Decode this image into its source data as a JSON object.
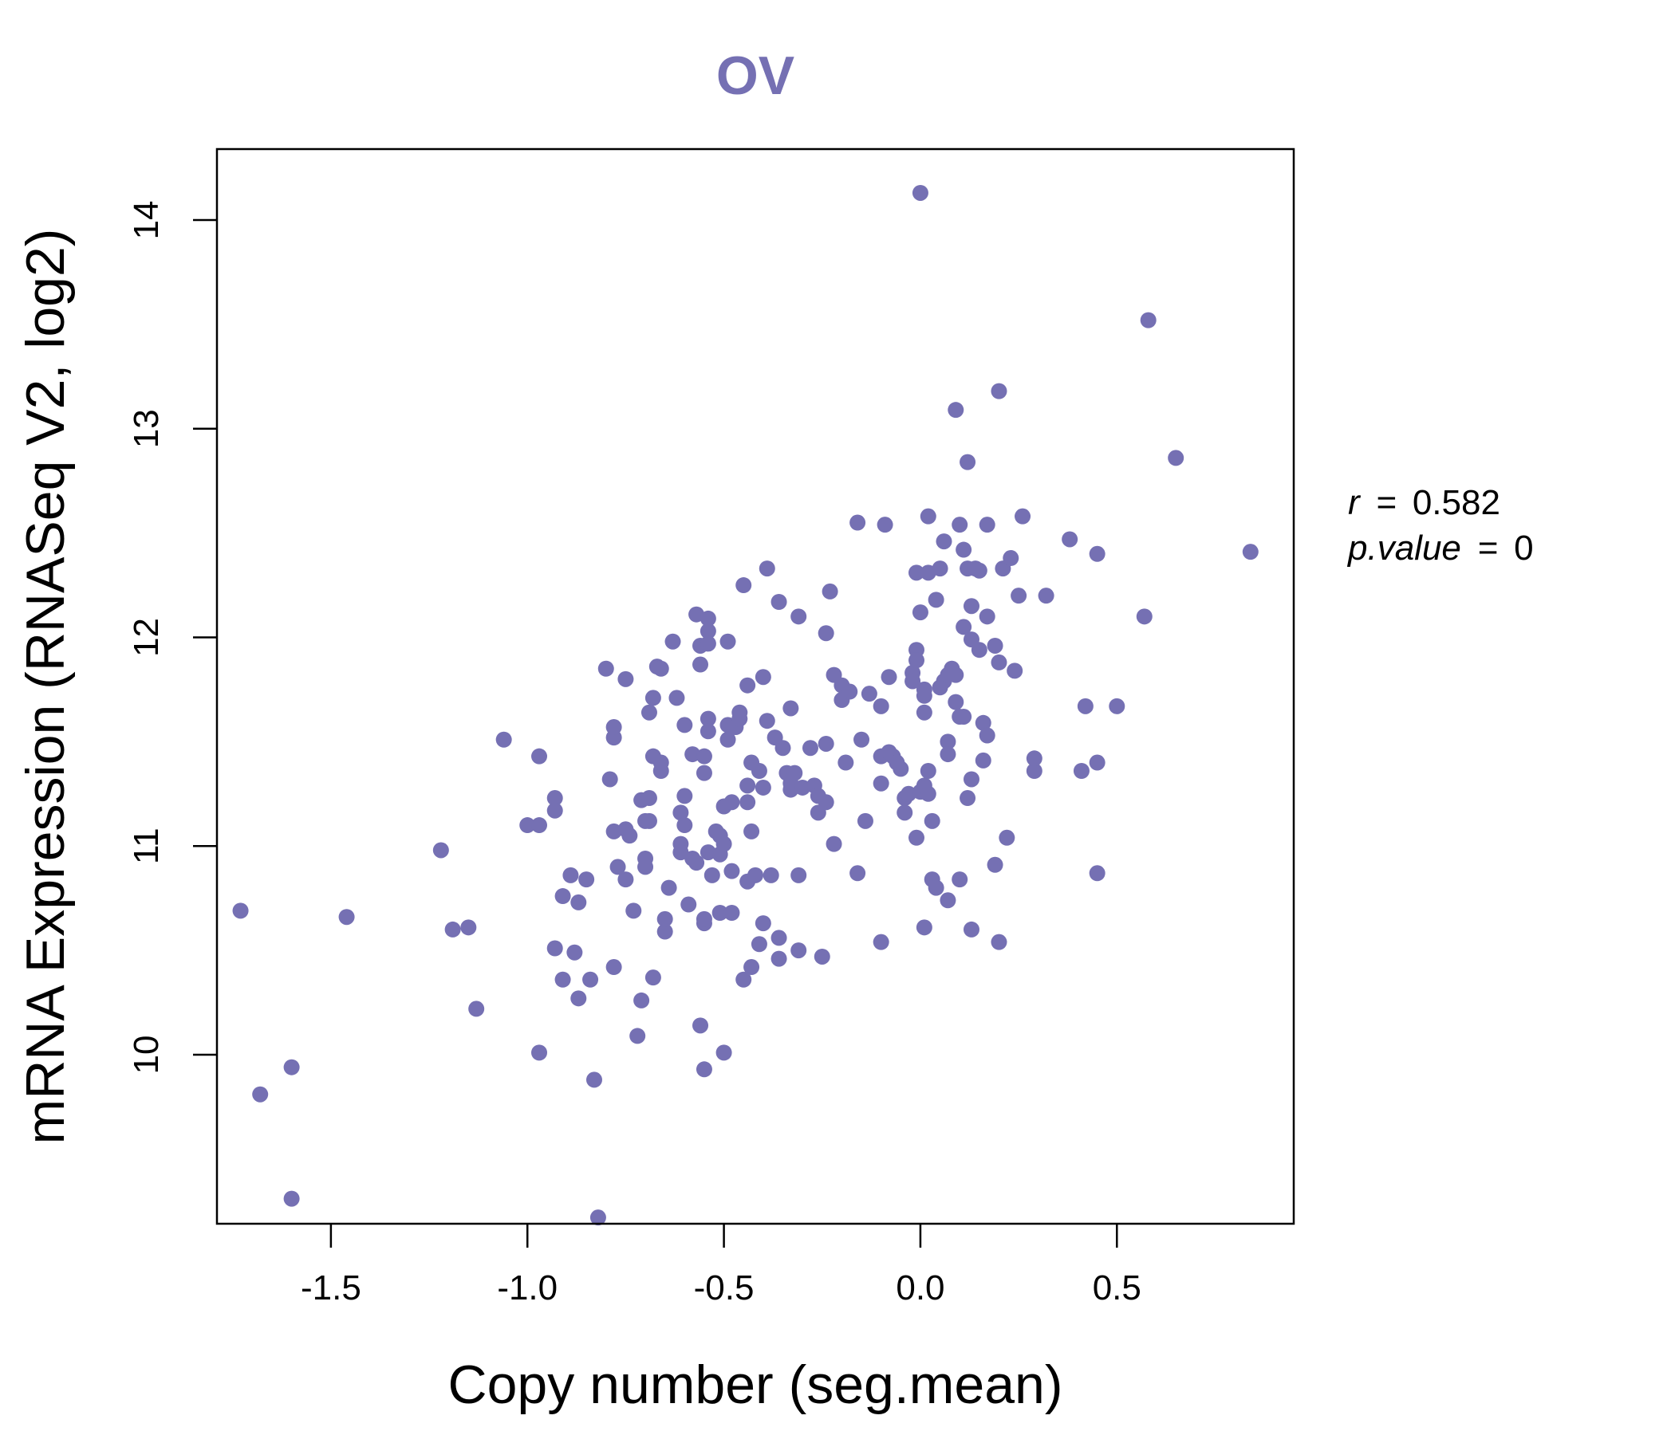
{
  "colors": {
    "point": "#7570b3",
    "axis": "#000000",
    "background": "#ffffff"
  },
  "chart_data": {
    "type": "scatter",
    "title": "OV",
    "xlabel": "Copy number (seg.mean)",
    "ylabel": "mRNA Expression (RNASeq V2, log2)",
    "xlim": [
      -1.79,
      0.95
    ],
    "ylim": [
      9.19,
      14.34
    ],
    "xticks": [
      -1.5,
      -1.0,
      -0.5,
      0.0,
      0.5
    ],
    "xtick_labels": [
      "-1.5",
      "-1.0",
      "-0.5",
      "0.0",
      "0.5"
    ],
    "yticks": [
      10,
      11,
      12,
      13,
      14
    ],
    "ytick_labels": [
      "10",
      "11",
      "12",
      "13",
      "14"
    ],
    "grid": false,
    "stats": {
      "r_label": "r",
      "r_value": "0.582",
      "p_label": "p.value",
      "p_value": "0",
      "eq": "="
    },
    "points": [
      [
        -1.73,
        10.69
      ],
      [
        -1.68,
        9.81
      ],
      [
        -1.6,
        9.94
      ],
      [
        -1.6,
        9.31
      ],
      [
        -1.46,
        10.66
      ],
      [
        -1.22,
        10.98
      ],
      [
        -1.19,
        10.6
      ],
      [
        -1.15,
        10.61
      ],
      [
        -1.13,
        10.22
      ],
      [
        -1.06,
        11.51
      ],
      [
        -1.0,
        11.1
      ],
      [
        -0.97,
        11.1
      ],
      [
        -0.97,
        11.43
      ],
      [
        -0.93,
        11.23
      ],
      [
        -0.93,
        11.17
      ],
      [
        -0.97,
        10.01
      ],
      [
        -0.93,
        10.51
      ],
      [
        -0.91,
        10.76
      ],
      [
        -0.91,
        10.36
      ],
      [
        -0.89,
        10.86
      ],
      [
        -0.88,
        10.49
      ],
      [
        -0.87,
        10.73
      ],
      [
        -0.87,
        10.27
      ],
      [
        -0.85,
        10.84
      ],
      [
        -0.84,
        10.36
      ],
      [
        -0.83,
        9.88
      ],
      [
        -0.82,
        9.22
      ],
      [
        -0.8,
        11.85
      ],
      [
        -0.79,
        11.32
      ],
      [
        -0.78,
        11.07
      ],
      [
        -0.78,
        10.42
      ],
      [
        -0.77,
        10.9
      ],
      [
        -0.78,
        11.52
      ],
      [
        -0.78,
        11.57
      ],
      [
        -0.75,
        11.8
      ],
      [
        -0.75,
        11.08
      ],
      [
        -0.75,
        10.84
      ],
      [
        -0.74,
        11.05
      ],
      [
        -0.73,
        10.69
      ],
      [
        -0.72,
        10.09
      ],
      [
        -0.71,
        10.26
      ],
      [
        -0.71,
        11.22
      ],
      [
        -0.7,
        10.94
      ],
      [
        -0.7,
        10.9
      ],
      [
        -0.7,
        11.12
      ],
      [
        -0.69,
        11.12
      ],
      [
        -0.69,
        11.23
      ],
      [
        -0.68,
        10.37
      ],
      [
        -0.69,
        11.64
      ],
      [
        -0.68,
        11.71
      ],
      [
        -0.68,
        11.43
      ],
      [
        -0.67,
        11.86
      ],
      [
        -0.66,
        11.85
      ],
      [
        -0.66,
        11.36
      ],
      [
        -0.66,
        11.4
      ],
      [
        -0.65,
        10.59
      ],
      [
        -0.65,
        10.65
      ],
      [
        -0.64,
        10.8
      ],
      [
        -0.63,
        11.98
      ],
      [
        -0.62,
        11.71
      ],
      [
        -0.61,
        11.01
      ],
      [
        -0.61,
        10.97
      ],
      [
        -0.61,
        11.16
      ],
      [
        -0.6,
        11.24
      ],
      [
        -0.6,
        11.1
      ],
      [
        -0.6,
        11.58
      ],
      [
        -0.59,
        10.72
      ],
      [
        -0.58,
        10.94
      ],
      [
        -0.58,
        11.44
      ],
      [
        -0.57,
        10.92
      ],
      [
        -0.57,
        12.11
      ],
      [
        -0.56,
        11.96
      ],
      [
        -0.56,
        11.87
      ],
      [
        -0.56,
        10.14
      ],
      [
        -0.55,
        9.93
      ],
      [
        -0.55,
        10.63
      ],
      [
        -0.55,
        10.65
      ],
      [
        -0.54,
        10.97
      ],
      [
        -0.55,
        11.35
      ],
      [
        -0.55,
        11.43
      ],
      [
        -0.54,
        11.61
      ],
      [
        -0.54,
        11.55
      ],
      [
        -0.54,
        12.03
      ],
      [
        -0.54,
        11.97
      ],
      [
        -0.54,
        12.09
      ],
      [
        -0.53,
        10.86
      ],
      [
        -0.52,
        11.07
      ],
      [
        -0.51,
        11.05
      ],
      [
        -0.51,
        10.96
      ],
      [
        -0.51,
        10.68
      ],
      [
        -0.5,
        11.01
      ],
      [
        -0.5,
        11.19
      ],
      [
        -0.5,
        10.01
      ],
      [
        -0.49,
        11.58
      ],
      [
        -0.49,
        11.51
      ],
      [
        -0.49,
        11.98
      ],
      [
        -0.48,
        11.21
      ],
      [
        -0.48,
        10.68
      ],
      [
        -0.48,
        10.88
      ],
      [
        -0.47,
        11.57
      ],
      [
        -0.46,
        11.64
      ],
      [
        -0.46,
        11.61
      ],
      [
        -0.45,
        12.25
      ],
      [
        -0.45,
        10.36
      ],
      [
        -0.44,
        11.29
      ],
      [
        -0.44,
        11.21
      ],
      [
        -0.44,
        10.83
      ],
      [
        -0.44,
        11.77
      ],
      [
        -0.43,
        11.07
      ],
      [
        -0.43,
        11.4
      ],
      [
        -0.43,
        10.42
      ],
      [
        -0.42,
        10.86
      ],
      [
        -0.41,
        10.53
      ],
      [
        -0.41,
        11.36
      ],
      [
        -0.4,
        11.81
      ],
      [
        -0.4,
        11.28
      ],
      [
        -0.4,
        10.63
      ],
      [
        -0.39,
        12.33
      ],
      [
        -0.39,
        11.6
      ],
      [
        -0.38,
        10.86
      ],
      [
        -0.37,
        11.52
      ],
      [
        -0.36,
        12.17
      ],
      [
        -0.36,
        10.56
      ],
      [
        -0.36,
        10.46
      ],
      [
        -0.35,
        11.47
      ],
      [
        -0.34,
        11.35
      ],
      [
        -0.33,
        11.66
      ],
      [
        -0.33,
        11.3
      ],
      [
        -0.33,
        11.27
      ],
      [
        -0.32,
        11.35
      ],
      [
        -0.31,
        10.86
      ],
      [
        -0.31,
        10.5
      ],
      [
        -0.31,
        12.1
      ],
      [
        -0.3,
        11.28
      ],
      [
        -0.28,
        11.47
      ],
      [
        -0.27,
        11.29
      ],
      [
        -0.26,
        11.16
      ],
      [
        -0.26,
        11.24
      ],
      [
        -0.25,
        10.47
      ],
      [
        -0.24,
        11.49
      ],
      [
        -0.24,
        11.21
      ],
      [
        -0.24,
        12.02
      ],
      [
        -0.23,
        12.22
      ],
      [
        -0.22,
        11.01
      ],
      [
        -0.22,
        11.82
      ],
      [
        -0.2,
        11.77
      ],
      [
        -0.2,
        11.7
      ],
      [
        -0.19,
        11.4
      ],
      [
        -0.18,
        11.74
      ],
      [
        -0.16,
        10.87
      ],
      [
        -0.16,
        12.55
      ],
      [
        -0.15,
        11.51
      ],
      [
        -0.14,
        11.12
      ],
      [
        -0.13,
        11.73
      ],
      [
        -0.1,
        11.67
      ],
      [
        -0.1,
        10.54
      ],
      [
        -0.1,
        11.43
      ],
      [
        -0.1,
        11.3
      ],
      [
        -0.09,
        12.54
      ],
      [
        -0.08,
        11.81
      ],
      [
        -0.08,
        11.45
      ],
      [
        -0.07,
        11.43
      ],
      [
        -0.06,
        11.4
      ],
      [
        -0.05,
        11.37
      ],
      [
        -0.04,
        11.16
      ],
      [
        -0.04,
        11.23
      ],
      [
        -0.03,
        11.25
      ],
      [
        -0.02,
        11.83
      ],
      [
        -0.02,
        11.79
      ],
      [
        -0.01,
        11.94
      ],
      [
        -0.01,
        11.04
      ],
      [
        -0.01,
        12.31
      ],
      [
        0.0,
        14.13
      ],
      [
        -0.01,
        11.89
      ],
      [
        0.0,
        12.12
      ],
      [
        0.0,
        11.26
      ],
      [
        0.01,
        11.29
      ],
      [
        0.01,
        11.75
      ],
      [
        0.01,
        11.64
      ],
      [
        0.01,
        10.61
      ],
      [
        0.01,
        11.72
      ],
      [
        0.02,
        12.31
      ],
      [
        0.02,
        11.36
      ],
      [
        0.02,
        11.25
      ],
      [
        0.02,
        12.58
      ],
      [
        0.03,
        10.84
      ],
      [
        0.03,
        11.12
      ],
      [
        0.04,
        10.8
      ],
      [
        0.04,
        12.18
      ],
      [
        0.05,
        12.33
      ],
      [
        0.05,
        11.76
      ],
      [
        0.06,
        11.79
      ],
      [
        0.06,
        12.46
      ],
      [
        0.07,
        11.82
      ],
      [
        0.07,
        10.74
      ],
      [
        0.07,
        11.5
      ],
      [
        0.07,
        11.44
      ],
      [
        0.08,
        11.85
      ],
      [
        0.09,
        13.09
      ],
      [
        0.09,
        11.69
      ],
      [
        0.1,
        11.62
      ],
      [
        0.09,
        11.82
      ],
      [
        0.1,
        10.84
      ],
      [
        0.1,
        12.54
      ],
      [
        0.11,
        12.05
      ],
      [
        0.11,
        11.62
      ],
      [
        0.11,
        12.42
      ],
      [
        0.12,
        12.33
      ],
      [
        0.12,
        11.23
      ],
      [
        0.12,
        12.84
      ],
      [
        0.13,
        12.15
      ],
      [
        0.13,
        11.32
      ],
      [
        0.13,
        11.99
      ],
      [
        0.13,
        10.6
      ],
      [
        0.14,
        12.33
      ],
      [
        0.15,
        11.94
      ],
      [
        0.15,
        12.32
      ],
      [
        0.16,
        11.59
      ],
      [
        0.16,
        11.41
      ],
      [
        0.17,
        12.1
      ],
      [
        0.17,
        11.53
      ],
      [
        0.17,
        12.54
      ],
      [
        0.19,
        11.96
      ],
      [
        0.19,
        10.91
      ],
      [
        0.2,
        13.18
      ],
      [
        0.2,
        11.88
      ],
      [
        0.2,
        10.54
      ],
      [
        0.21,
        12.33
      ],
      [
        0.22,
        11.04
      ],
      [
        0.23,
        12.38
      ],
      [
        0.24,
        11.84
      ],
      [
        0.25,
        12.2
      ],
      [
        0.26,
        12.58
      ],
      [
        0.29,
        11.36
      ],
      [
        0.29,
        11.42
      ],
      [
        0.32,
        12.2
      ],
      [
        0.38,
        12.47
      ],
      [
        0.41,
        11.36
      ],
      [
        0.42,
        11.67
      ],
      [
        0.45,
        12.4
      ],
      [
        0.45,
        11.4
      ],
      [
        0.45,
        10.87
      ],
      [
        0.5,
        11.67
      ],
      [
        0.57,
        12.1
      ],
      [
        0.58,
        13.52
      ],
      [
        0.65,
        12.86
      ],
      [
        0.84,
        12.41
      ]
    ]
  }
}
